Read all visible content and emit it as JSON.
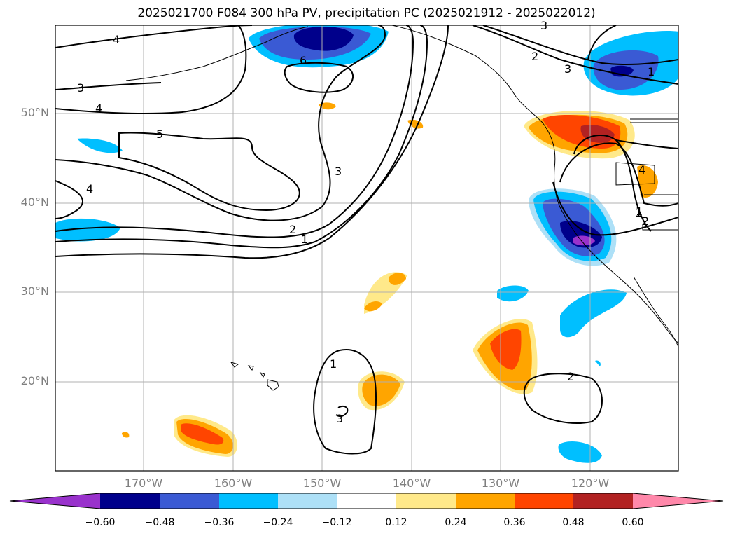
{
  "title": "2025021700 F084 300 hPa PV, precipitation PC (2025021912 - 2025022012)",
  "lat_labels": [
    "50°N",
    "40°N",
    "30°N",
    "20°N"
  ],
  "lon_labels": [
    "170°W",
    "160°W",
    "150°W",
    "140°W",
    "130°W",
    "120°W"
  ],
  "colorbar": {
    "colors": [
      "#9932cc",
      "#00008b",
      "#3a5ad4",
      "#00bfff",
      "#ade0f7",
      "#ffffff",
      "#ffe98a",
      "#ffa500",
      "#ff4500",
      "#b22222",
      "#ff88aa"
    ],
    "labels": [
      "−0.60",
      "−0.48",
      "−0.36",
      "−0.24",
      "−0.12",
      "0.12",
      "0.24",
      "0.36",
      "0.48",
      "0.60"
    ]
  },
  "contour_labels": [
    "4",
    "3",
    "4",
    "5",
    "4",
    "6",
    "3",
    "2",
    "1",
    "3",
    "2",
    "3",
    "1",
    "2",
    "1",
    "1",
    "3",
    "2",
    "4",
    "1"
  ],
  "colors": {
    "grid": "#b0b0b0",
    "axis_text": "#7f7f7f",
    "contour": "#000000"
  }
}
